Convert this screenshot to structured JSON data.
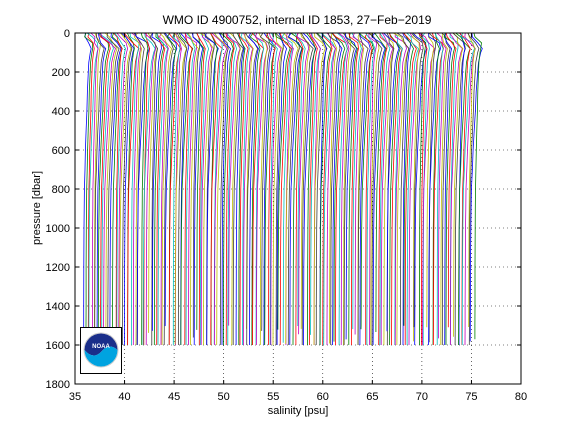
{
  "chart_data": {
    "type": "line",
    "title": "WMO ID 4900752, internal ID 1853, 27−Feb−2019",
    "xlabel": "salinity [psu]",
    "ylabel": "pressure [dbar]",
    "xlim": [
      35,
      80
    ],
    "ylim": [
      0,
      1800
    ],
    "y_reversed": true,
    "x_ticks": [
      35,
      40,
      45,
      50,
      55,
      60,
      65,
      70,
      75,
      80
    ],
    "y_ticks": [
      0,
      200,
      400,
      600,
      800,
      1000,
      1200,
      1400,
      1600,
      1800
    ],
    "grid": "dotted",
    "series_offset_psu": 0.2,
    "series_count": 198,
    "profile_pressure": [
      0,
      20,
      50,
      80,
      100,
      150,
      200,
      300,
      400,
      500,
      600,
      700,
      800,
      900,
      1000,
      1200,
      1400,
      1500,
      1600
    ],
    "profile_salinity_anomaly": [
      -0.4,
      -0.25,
      0.2,
      0.45,
      0.35,
      0.2,
      0.15,
      0.05,
      0.0,
      -0.08,
      -0.15,
      -0.2,
      -0.26,
      -0.28,
      -0.3,
      -0.32,
      -0.33,
      -0.335,
      -0.34
    ],
    "profile_base_salinity": 35.0,
    "colors": [
      "#0000ff",
      "#008000",
      "#ff0000",
      "#00bfbf",
      "#bf00bf",
      "#bfbf00",
      "#404040"
    ]
  },
  "logo": {
    "text": "NOAA",
    "colors": {
      "sky": "#1a2e8a",
      "sea": "#00a3e0"
    }
  }
}
